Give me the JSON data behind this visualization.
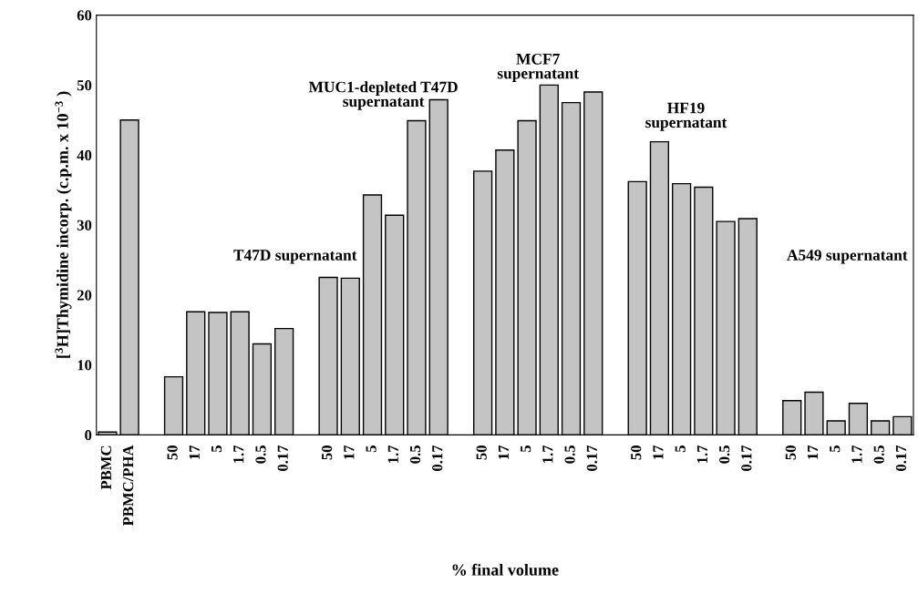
{
  "chart_data": {
    "type": "bar",
    "ylabel": "[$^{3}$H]Thymidine incorp. (c.p.m. x 10$^{−3}$ )",
    "xlabel": "% final volume",
    "categories": [
      "PBMC",
      "PBMC/PHA",
      null,
      "50",
      "17",
      "5",
      "1.7",
      "0.5",
      "0.17",
      null,
      "50",
      "17",
      "5",
      "1.7",
      "0.5",
      "0.17",
      null,
      "50",
      "17",
      "5",
      "1.7",
      "0.5",
      "0.17",
      null,
      "50",
      "17",
      "5",
      "1.7",
      "0.5",
      "0.17",
      null,
      "50",
      "17",
      "5",
      "1.7",
      "0.5",
      "0.17"
    ],
    "values": [
      0.4,
      45,
      null,
      8.3,
      17.6,
      17.5,
      17.6,
      13.0,
      15.2,
      null,
      22.5,
      22.4,
      34.3,
      31.4,
      44.9,
      47.9,
      null,
      37.7,
      40.7,
      44.9,
      50.0,
      47.5,
      49.0,
      null,
      36.2,
      41.9,
      35.9,
      35.4,
      30.5,
      30.9,
      null,
      4.9,
      6.1,
      2.0,
      4.5,
      2.0,
      2.6
    ],
    "color": "#c4c4c4",
    "ylim": [
      0,
      60
    ],
    "yticks": [
      0,
      10,
      20,
      30,
      40,
      50,
      60
    ],
    "grid": false,
    "annotations": [
      "T47D supernatant",
      "MUC1-depleted T47D\nsupernatant",
      "MCF7\nsupernatant",
      "HF19\nsupernatant",
      "A549 supernatant"
    ]
  }
}
